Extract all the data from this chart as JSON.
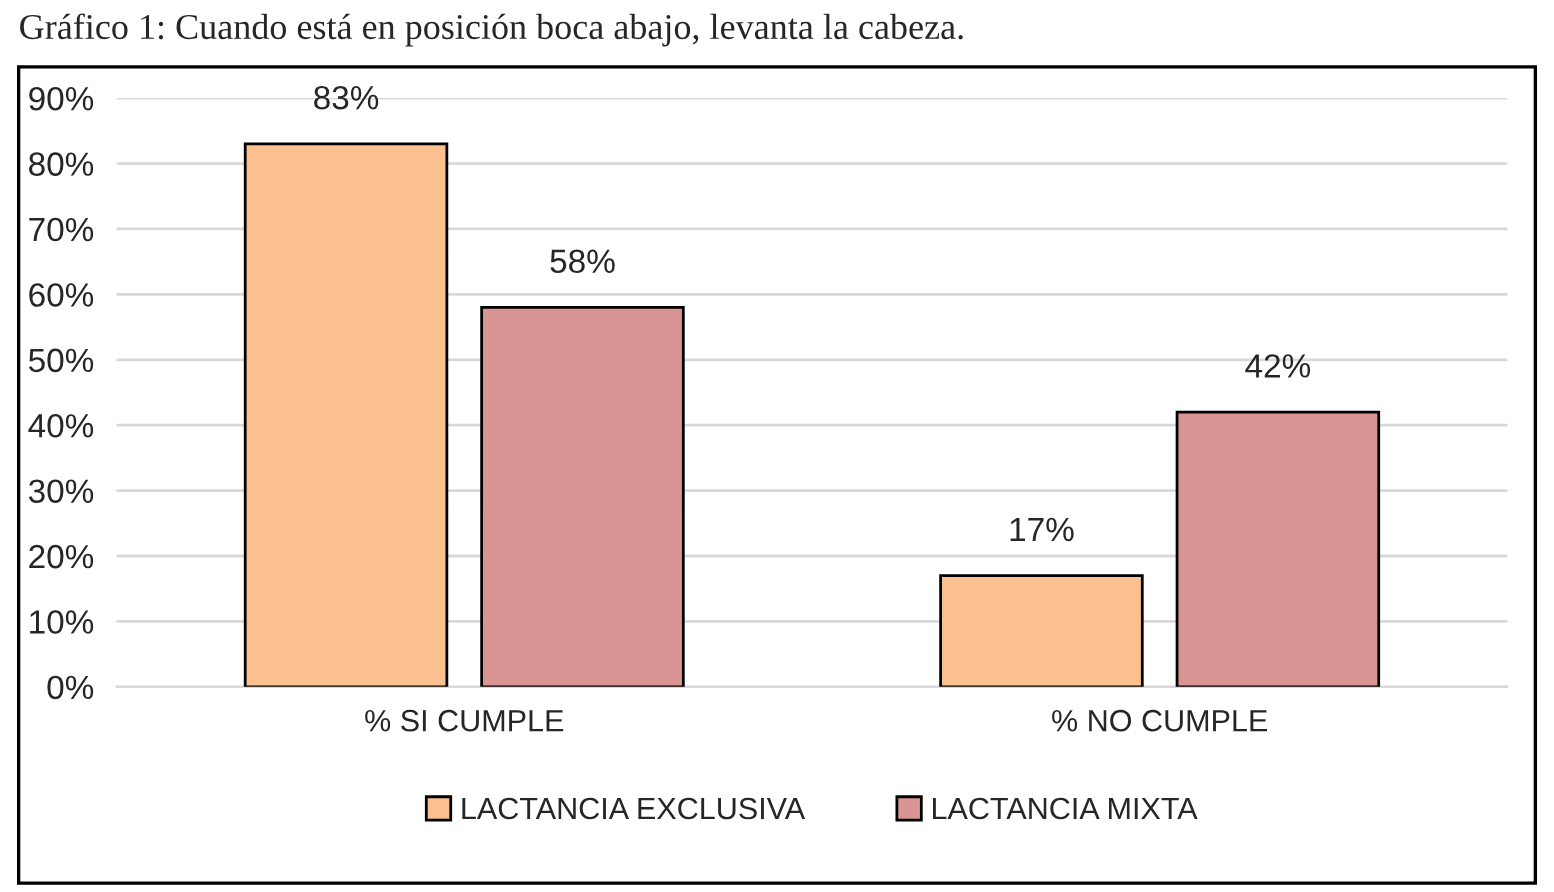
{
  "chart_data": {
    "type": "bar",
    "title": "Gráfico 1: Cuando está en posición boca abajo, levanta la cabeza.",
    "categories": [
      "% SI CUMPLE",
      "% NO CUMPLE"
    ],
    "series": [
      {
        "name": "LACTANCIA EXCLUSIVA",
        "color": "#fac090",
        "values": [
          83,
          17
        ],
        "value_labels": [
          "83%",
          "17%"
        ]
      },
      {
        "name": "LACTANCIA MIXTA",
        "color": "#d99594",
        "values": [
          58,
          42
        ],
        "value_labels": [
          "58%",
          "42%"
        ]
      }
    ],
    "ylim": [
      0,
      90
    ],
    "yticks": [
      {
        "value": 0,
        "label": "0%"
      },
      {
        "value": 10,
        "label": "10%"
      },
      {
        "value": 20,
        "label": "20%"
      },
      {
        "value": 30,
        "label": "30%"
      },
      {
        "value": 40,
        "label": "40%"
      },
      {
        "value": 50,
        "label": "50%"
      },
      {
        "value": 60,
        "label": "60%"
      },
      {
        "value": 70,
        "label": "70%"
      },
      {
        "value": 80,
        "label": "80%"
      },
      {
        "value": 90,
        "label": "90%"
      }
    ],
    "grid": "y",
    "legend": "bottom"
  }
}
